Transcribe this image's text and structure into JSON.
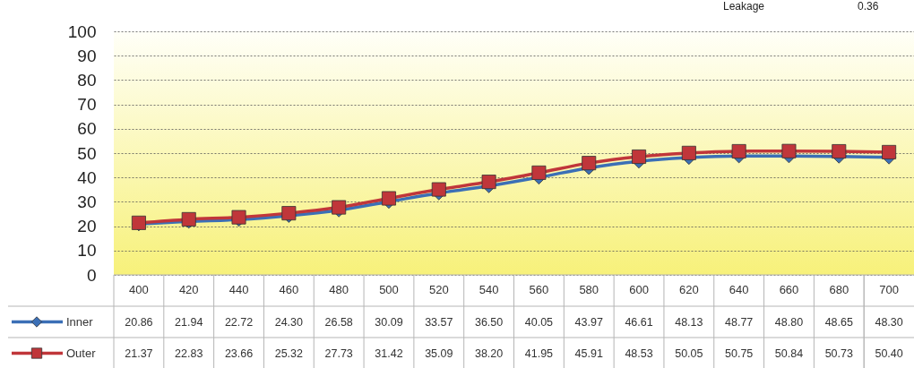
{
  "chart_data": {
    "type": "line",
    "categories": [
      "400",
      "420",
      "440",
      "460",
      "480",
      "500",
      "520",
      "540",
      "560",
      "580",
      "600",
      "620",
      "640",
      "660",
      "680",
      "700"
    ],
    "series": [
      {
        "name": "Inner",
        "color": "#3b6fb6",
        "marker": "diamond",
        "values": [
          20.86,
          21.94,
          22.72,
          24.3,
          26.58,
          30.09,
          33.57,
          36.5,
          40.05,
          43.97,
          46.61,
          48.13,
          48.77,
          48.8,
          48.65,
          48.3
        ],
        "value_labels": [
          "20.86",
          "21.94",
          "22.72",
          "24.30",
          "26.58",
          "30.09",
          "33.57",
          "36.50",
          "40.05",
          "43.97",
          "46.61",
          "48.13",
          "48.77",
          "48.80",
          "48.65",
          "48.30"
        ]
      },
      {
        "name": "Outer",
        "color": "#c0363a",
        "marker": "square",
        "values": [
          21.37,
          22.83,
          23.66,
          25.32,
          27.73,
          31.42,
          35.09,
          38.2,
          41.95,
          45.91,
          48.53,
          50.05,
          50.75,
          50.84,
          50.73,
          50.4
        ],
        "value_labels": [
          "21.37",
          "22.83",
          "23.66",
          "25.32",
          "27.73",
          "31.42",
          "35.09",
          "38.20",
          "41.95",
          "45.91",
          "48.53",
          "50.05",
          "50.75",
          "50.84",
          "50.73",
          "50.40"
        ]
      }
    ],
    "ylim": [
      0,
      100
    ],
    "yticks": [
      0,
      10,
      20,
      30,
      40,
      50,
      60,
      70,
      80,
      90,
      100
    ],
    "grid": "y",
    "legend": "bottom",
    "line_style": "solid",
    "annotations": [
      "Leakage",
      "0.36"
    ]
  }
}
